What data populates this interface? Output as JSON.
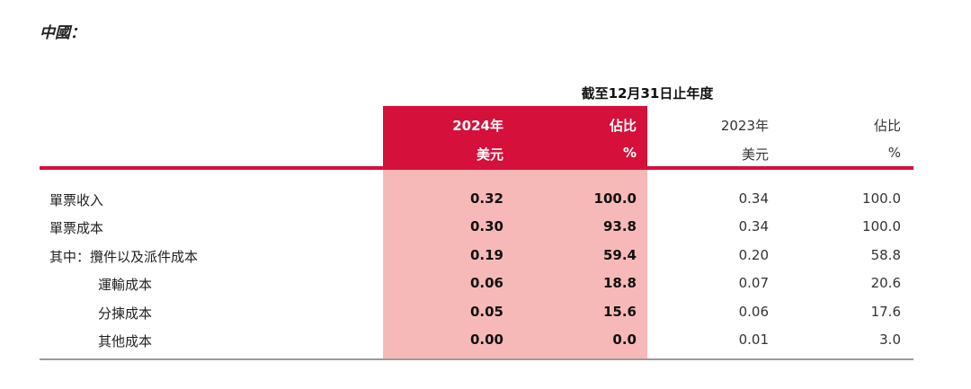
{
  "section_title": "中國：",
  "period_label": "截至12月31日止年度",
  "headers": {
    "y2024": "2024年",
    "y2024_unit": "美元",
    "pct2024": "佔比",
    "pct2024_unit": "%",
    "y2023": "2023年",
    "y2023_unit": "美元",
    "pct2023": "佔比",
    "pct2023_unit": "%"
  },
  "rows": [
    {
      "label": "單票收入",
      "v2024": "0.32",
      "p2024": "100.0",
      "v2023": "0.34",
      "p2023": "100.0"
    },
    {
      "label": "單票成本",
      "v2024": "0.30",
      "p2024": "93.8",
      "v2023": "0.34",
      "p2023": "100.0"
    },
    {
      "label": "其中：攬件以及派件成本",
      "v2024": "0.19",
      "p2024": "59.4",
      "v2023": "0.20",
      "p2023": "58.8"
    },
    {
      "label": "運輸成本",
      "v2024": "0.06",
      "p2024": "18.8",
      "v2023": "0.07",
      "p2023": "20.6"
    },
    {
      "label": "分揀成本",
      "v2024": "0.05",
      "p2024": "15.6",
      "v2023": "0.06",
      "p2023": "17.6"
    },
    {
      "label": "其他成本",
      "v2024": "0.00",
      "p2024": "0.0",
      "v2023": "0.01",
      "p2023": "3.0"
    }
  ],
  "colors": {
    "accent_red": "#d5103a",
    "highlight_pink": "#f7b9b8",
    "rule_gray": "#9a9a9a"
  }
}
